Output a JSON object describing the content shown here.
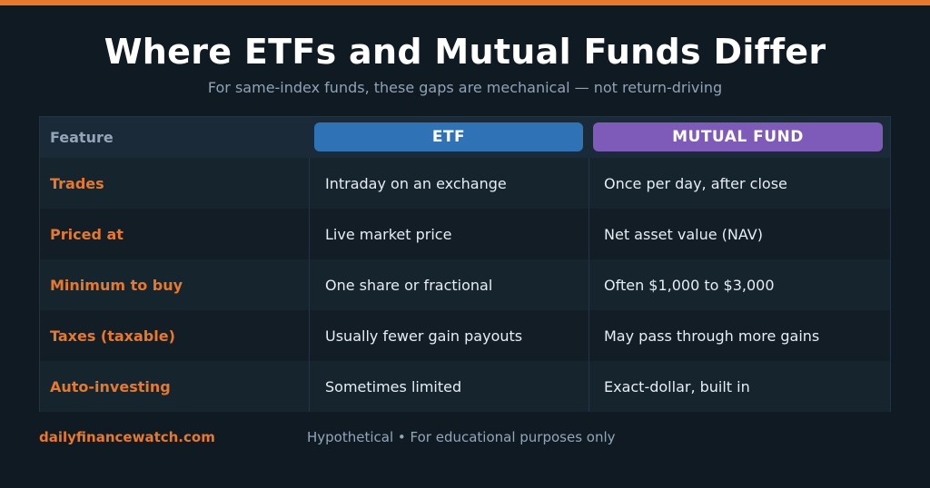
{
  "colors": {
    "accent": "#e8782a",
    "background": "#0f1a23",
    "etf": "#2f72b5",
    "mutual_fund": "#7e5ab9"
  },
  "title": "Where ETFs and Mutual Funds Differ",
  "subtitle": "For same-index funds, these gaps are mechanical — not return-driving",
  "table": {
    "headers": {
      "feature": "Feature",
      "etf": "ETF",
      "mutual_fund": "MUTUAL FUND"
    },
    "rows": [
      {
        "feature": "Trades",
        "etf": "Intraday on an exchange",
        "mutual_fund": "Once per day, after close"
      },
      {
        "feature": "Priced at",
        "etf": "Live market price",
        "mutual_fund": "Net asset value (NAV)"
      },
      {
        "feature": "Minimum to buy",
        "etf": "One share or fractional",
        "mutual_fund": "Often $1,000 to $3,000"
      },
      {
        "feature": "Taxes (taxable)",
        "etf": "Usually fewer gain payouts",
        "mutual_fund": "May pass through more gains"
      },
      {
        "feature": "Auto-investing",
        "etf": "Sometimes limited",
        "mutual_fund": "Exact-dollar, built in"
      }
    ]
  },
  "footer": {
    "brand": "dailyfinancewatch.com",
    "note": "Hypothetical • For educational purposes only"
  }
}
